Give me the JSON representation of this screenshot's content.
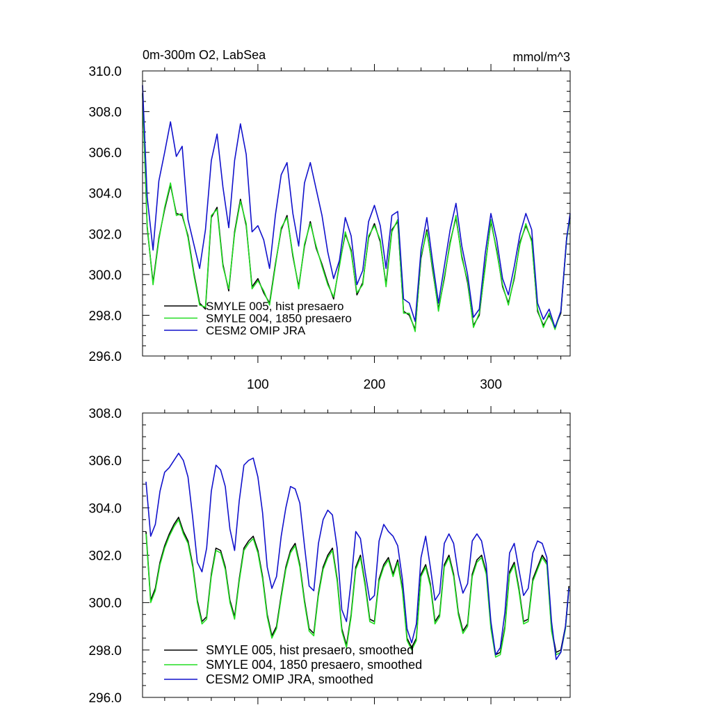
{
  "colors": {
    "smyle005": "#000000",
    "smyle004": "#22dd22",
    "omip": "#1111cc"
  },
  "chart_data": [
    {
      "type": "line",
      "title": "0m-300m O2, LabSea",
      "units": "mmol/m^3",
      "xlim": [
        1,
        368
      ],
      "ylim": [
        296,
        310
      ],
      "y_ticks": [
        "310.0",
        "308.0",
        "306.0",
        "304.0",
        "302.0",
        "300.0",
        "298.0",
        "296.0"
      ],
      "x_ticks": [
        "100",
        "200",
        "300"
      ],
      "legend_position": "bottom-left",
      "series": [
        {
          "name": "SMYLE 005, hist presaero",
          "color": "#000000",
          "x": [
            1,
            5,
            10,
            15,
            20,
            25,
            30,
            35,
            40,
            45,
            50,
            55,
            60,
            65,
            70,
            75,
            80,
            85,
            90,
            95,
            100,
            105,
            110,
            115,
            120,
            125,
            130,
            135,
            140,
            145,
            150,
            155,
            160,
            165,
            170,
            175,
            180,
            185,
            190,
            195,
            200,
            205,
            210,
            215,
            220,
            225,
            230,
            235,
            240,
            245,
            250,
            255,
            260,
            265,
            270,
            275,
            280,
            285,
            290,
            295,
            300,
            305,
            310,
            315,
            320,
            325,
            330,
            335,
            340,
            345,
            350,
            355,
            360,
            365,
            368
          ],
          "y": [
            308.9,
            302.3,
            299.6,
            301.8,
            303.2,
            304.4,
            303.0,
            302.9,
            301.9,
            300.1,
            298.6,
            298.3,
            302.8,
            303.3,
            300.5,
            299.2,
            302.1,
            303.7,
            302.4,
            299.4,
            299.8,
            299.1,
            298.6,
            300.5,
            302.2,
            302.9,
            300.9,
            299.4,
            301.4,
            302.6,
            301.3,
            300.5,
            299.6,
            298.8,
            300.5,
            302.0,
            301.2,
            299.0,
            299.6,
            301.8,
            302.5,
            301.6,
            299.5,
            302.2,
            302.6,
            298.2,
            298.0,
            297.3,
            300.8,
            302.2,
            300.2,
            298.3,
            299.8,
            301.6,
            302.8,
            300.9,
            299.6,
            297.5,
            298.0,
            300.4,
            302.6,
            301.2,
            299.4,
            298.6,
            299.8,
            301.6,
            302.4,
            301.7,
            298.2,
            297.5,
            298.0,
            297.4,
            298.1,
            301.8,
            302.8
          ]
        },
        {
          "name": "SMYLE 004, 1850 presaero",
          "color": "#22dd22",
          "x": [
            1,
            5,
            10,
            15,
            20,
            25,
            30,
            35,
            40,
            45,
            50,
            55,
            60,
            65,
            70,
            75,
            80,
            85,
            90,
            95,
            100,
            105,
            110,
            115,
            120,
            125,
            130,
            135,
            140,
            145,
            150,
            155,
            160,
            165,
            170,
            175,
            180,
            185,
            190,
            195,
            200,
            205,
            210,
            215,
            220,
            225,
            230,
            235,
            240,
            245,
            250,
            255,
            260,
            265,
            270,
            275,
            280,
            285,
            290,
            295,
            300,
            305,
            310,
            315,
            320,
            325,
            330,
            335,
            340,
            345,
            350,
            355,
            360,
            365,
            368
          ],
          "y": [
            308.8,
            302.4,
            299.5,
            301.7,
            303.3,
            304.5,
            302.9,
            303.0,
            301.8,
            300.0,
            298.5,
            298.4,
            302.9,
            303.2,
            300.4,
            299.3,
            302.0,
            303.6,
            302.5,
            299.3,
            299.7,
            299.2,
            298.5,
            300.4,
            302.3,
            302.8,
            301.0,
            299.3,
            301.5,
            302.5,
            301.4,
            300.4,
            299.5,
            298.9,
            300.4,
            302.1,
            301.1,
            299.1,
            299.5,
            301.9,
            302.4,
            301.7,
            299.4,
            302.1,
            302.7,
            298.1,
            298.1,
            297.2,
            300.9,
            302.1,
            300.3,
            298.2,
            299.9,
            301.5,
            302.9,
            300.8,
            299.7,
            297.4,
            298.1,
            300.3,
            302.7,
            301.1,
            299.5,
            298.5,
            299.9,
            301.5,
            302.5,
            301.6,
            298.3,
            297.4,
            298.1,
            297.3,
            298.2,
            301.7,
            302.9
          ]
        },
        {
          "name": "CESM2 OMIP JRA",
          "color": "#1111cc",
          "x": [
            1,
            5,
            10,
            15,
            20,
            25,
            30,
            35,
            40,
            45,
            50,
            55,
            60,
            65,
            70,
            75,
            80,
            85,
            90,
            95,
            100,
            105,
            110,
            115,
            120,
            125,
            130,
            135,
            140,
            145,
            150,
            155,
            160,
            165,
            170,
            175,
            180,
            185,
            190,
            195,
            200,
            205,
            210,
            215,
            220,
            225,
            230,
            235,
            240,
            245,
            250,
            255,
            260,
            265,
            270,
            275,
            280,
            285,
            290,
            295,
            300,
            305,
            310,
            315,
            320,
            325,
            330,
            335,
            340,
            345,
            350,
            355,
            360,
            365,
            368
          ],
          "y": [
            309.3,
            303.8,
            301.2,
            304.6,
            306.0,
            307.5,
            305.8,
            306.3,
            302.7,
            301.5,
            300.3,
            302.2,
            305.6,
            306.9,
            304.3,
            302.3,
            305.6,
            307.4,
            305.9,
            302.1,
            302.4,
            301.7,
            300.3,
            302.9,
            304.9,
            305.5,
            303.0,
            301.4,
            304.5,
            305.5,
            304.2,
            302.9,
            301.1,
            299.8,
            300.7,
            302.8,
            301.9,
            299.5,
            300.2,
            302.6,
            303.4,
            302.4,
            300.3,
            302.9,
            303.1,
            298.8,
            298.6,
            297.7,
            301.2,
            302.8,
            300.6,
            298.6,
            300.4,
            302.2,
            303.5,
            301.4,
            300.0,
            297.9,
            298.3,
            301.0,
            303.0,
            301.7,
            299.8,
            299.0,
            300.4,
            302.0,
            303.0,
            302.2,
            298.6,
            297.8,
            298.3,
            297.4,
            298.2,
            301.8,
            303.0
          ]
        }
      ]
    },
    {
      "type": "line",
      "title": "",
      "xlim": [
        1,
        368
      ],
      "ylim": [
        296,
        308
      ],
      "y_ticks": [
        "308.0",
        "306.0",
        "304.0",
        "302.0",
        "300.0",
        "298.0",
        "296.0"
      ],
      "legend_position": "bottom-left",
      "series": [
        {
          "name": "SMYLE 005, hist presaero, smoothed",
          "color": "#000000",
          "x": [
            4,
            8,
            12,
            16,
            20,
            24,
            28,
            32,
            36,
            40,
            44,
            48,
            52,
            56,
            60,
            64,
            68,
            72,
            76,
            80,
            84,
            88,
            92,
            96,
            100,
            104,
            108,
            112,
            116,
            120,
            124,
            128,
            132,
            136,
            140,
            144,
            148,
            152,
            156,
            160,
            164,
            168,
            172,
            176,
            180,
            184,
            188,
            192,
            196,
            200,
            204,
            208,
            212,
            216,
            220,
            224,
            228,
            232,
            236,
            240,
            244,
            248,
            252,
            256,
            260,
            264,
            268,
            272,
            276,
            280,
            284,
            288,
            292,
            296,
            300,
            304,
            308,
            312,
            316,
            320,
            324,
            328,
            332,
            336,
            340,
            344,
            348,
            352,
            356,
            360,
            364,
            367
          ],
          "y": [
            303.0,
            300.1,
            300.6,
            301.7,
            302.4,
            302.9,
            303.3,
            303.6,
            303.0,
            302.6,
            301.6,
            300.1,
            299.2,
            299.4,
            301.2,
            302.3,
            302.2,
            301.5,
            300.1,
            299.4,
            301.0,
            302.3,
            302.6,
            302.8,
            302.2,
            301.1,
            299.5,
            298.6,
            299.0,
            300.3,
            301.5,
            302.2,
            302.5,
            301.6,
            300.1,
            298.9,
            298.7,
            300.4,
            301.5,
            302.0,
            302.3,
            301.0,
            298.9,
            298.2,
            299.5,
            301.5,
            302.0,
            300.8,
            299.3,
            299.2,
            301.0,
            301.6,
            301.9,
            301.2,
            301.8,
            300.6,
            298.5,
            298.1,
            298.5,
            301.2,
            301.6,
            300.8,
            299.2,
            299.5,
            301.6,
            302.0,
            301.2,
            299.6,
            298.8,
            299.1,
            301.2,
            301.8,
            302.0,
            301.3,
            299.0,
            297.8,
            297.9,
            299.0,
            301.3,
            301.7,
            300.6,
            299.2,
            299.3,
            301.0,
            301.5,
            302.0,
            301.7,
            298.9,
            297.9,
            298.0,
            299.0,
            300.7
          ]
        },
        {
          "name": "SMYLE 004, 1850 presaero, smoothed",
          "color": "#22dd22",
          "x": [
            4,
            8,
            12,
            16,
            20,
            24,
            28,
            32,
            36,
            40,
            44,
            48,
            52,
            56,
            60,
            64,
            68,
            72,
            76,
            80,
            84,
            88,
            92,
            96,
            100,
            104,
            108,
            112,
            116,
            120,
            124,
            128,
            132,
            136,
            140,
            144,
            148,
            152,
            156,
            160,
            164,
            168,
            172,
            176,
            180,
            184,
            188,
            192,
            196,
            200,
            204,
            208,
            212,
            216,
            220,
            224,
            228,
            232,
            236,
            240,
            244,
            248,
            252,
            256,
            260,
            264,
            268,
            272,
            276,
            280,
            284,
            288,
            292,
            296,
            300,
            304,
            308,
            312,
            316,
            320,
            324,
            328,
            332,
            336,
            340,
            344,
            348,
            352,
            356,
            360,
            364,
            367
          ],
          "y": [
            302.9,
            300.0,
            300.5,
            301.6,
            302.3,
            302.8,
            303.2,
            303.5,
            302.9,
            302.5,
            301.5,
            300.0,
            299.1,
            299.3,
            301.1,
            302.2,
            302.1,
            301.4,
            300.0,
            299.3,
            300.9,
            302.2,
            302.5,
            302.7,
            302.1,
            301.0,
            299.4,
            298.5,
            298.9,
            300.2,
            301.4,
            302.1,
            302.4,
            301.5,
            300.0,
            298.8,
            298.6,
            300.3,
            301.4,
            301.9,
            302.2,
            300.9,
            298.8,
            298.1,
            299.4,
            301.4,
            301.9,
            300.7,
            299.2,
            299.1,
            300.9,
            301.5,
            301.8,
            301.1,
            301.7,
            300.5,
            298.4,
            298.0,
            298.4,
            301.1,
            301.5,
            300.7,
            299.1,
            299.4,
            301.5,
            301.9,
            301.1,
            299.5,
            298.7,
            299.0,
            301.1,
            301.7,
            301.9,
            301.2,
            298.9,
            297.7,
            297.8,
            298.9,
            301.2,
            301.6,
            300.5,
            299.1,
            299.2,
            300.9,
            301.4,
            301.9,
            301.6,
            298.8,
            297.8,
            297.9,
            298.9,
            300.6
          ]
        },
        {
          "name": "CESM2 OMIP JRA, smoothed",
          "color": "#1111cc",
          "x": [
            4,
            8,
            12,
            16,
            20,
            24,
            28,
            32,
            36,
            40,
            44,
            48,
            52,
            56,
            60,
            64,
            68,
            72,
            76,
            80,
            84,
            88,
            92,
            96,
            100,
            104,
            108,
            112,
            116,
            120,
            124,
            128,
            132,
            136,
            140,
            144,
            148,
            152,
            156,
            160,
            164,
            168,
            172,
            176,
            180,
            184,
            188,
            192,
            196,
            200,
            204,
            208,
            212,
            216,
            220,
            224,
            228,
            232,
            236,
            240,
            244,
            248,
            252,
            256,
            260,
            264,
            268,
            272,
            276,
            280,
            284,
            288,
            292,
            296,
            300,
            304,
            308,
            312,
            316,
            320,
            324,
            328,
            332,
            336,
            340,
            344,
            348,
            352,
            356,
            360,
            364,
            367
          ],
          "y": [
            305.1,
            302.8,
            303.3,
            304.7,
            305.5,
            305.7,
            306.0,
            306.3,
            306.0,
            305.3,
            303.6,
            301.7,
            301.3,
            302.3,
            304.7,
            305.8,
            305.6,
            304.9,
            303.1,
            302.2,
            304.3,
            305.8,
            306.0,
            306.1,
            305.3,
            303.8,
            301.5,
            300.6,
            301.1,
            302.8,
            304.0,
            304.9,
            304.8,
            304.2,
            302.4,
            300.7,
            300.5,
            302.5,
            303.5,
            303.9,
            303.7,
            302.3,
            299.7,
            299.2,
            300.9,
            303.0,
            302.7,
            301.3,
            300.1,
            300.3,
            302.6,
            303.3,
            303.0,
            302.8,
            302.4,
            301.0,
            298.9,
            298.3,
            299.1,
            301.9,
            302.8,
            301.5,
            300.1,
            300.4,
            302.5,
            302.9,
            302.5,
            301.2,
            300.4,
            300.8,
            302.6,
            302.9,
            302.6,
            301.6,
            299.2,
            297.8,
            298.1,
            299.6,
            302.1,
            302.5,
            301.4,
            300.3,
            300.6,
            302.1,
            302.6,
            302.5,
            301.9,
            299.2,
            297.6,
            297.9,
            299.0,
            300.6
          ]
        }
      ]
    }
  ]
}
